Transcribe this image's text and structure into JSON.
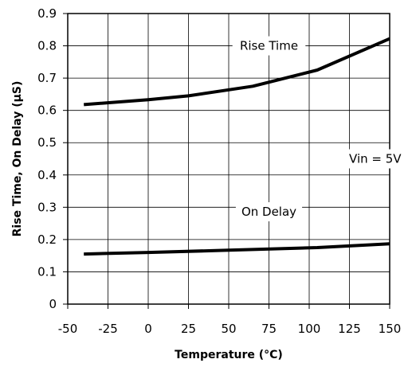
{
  "chart_data": {
    "type": "line",
    "xlabel": "Temperature (°C)",
    "ylabel": "Rise Time,  On Delay  (µS)",
    "xlim": [
      -50,
      150
    ],
    "ylim": [
      0,
      0.9
    ],
    "xticks": [
      -50,
      -25,
      0,
      25,
      50,
      75,
      100,
      125,
      150
    ],
    "xtick_labels": [
      "-50",
      "-25",
      "0",
      "25",
      "50",
      "75",
      "100",
      "125",
      "150"
    ],
    "yticks": [
      0,
      0.1,
      0.2,
      0.3,
      0.4,
      0.5,
      0.6,
      0.7,
      0.8,
      0.9
    ],
    "ytick_labels": [
      "0",
      "0.1",
      "0.2",
      "0.3",
      "0.4",
      "0.5",
      "0.6",
      "0.7",
      "0.8",
      "0.9"
    ],
    "grid": true,
    "series": [
      {
        "name": "Rise Time",
        "points": [
          [
            -40,
            0.618
          ],
          [
            0,
            0.633
          ],
          [
            25,
            0.645
          ],
          [
            65,
            0.675
          ],
          [
            105,
            0.725
          ],
          [
            150,
            0.822
          ]
        ]
      },
      {
        "name": "On Delay",
        "points": [
          [
            -40,
            0.155
          ],
          [
            0,
            0.16
          ],
          [
            50,
            0.167
          ],
          [
            105,
            0.175
          ],
          [
            150,
            0.187
          ]
        ]
      }
    ],
    "annotations": [
      {
        "text": "Rise Time",
        "x": 75,
        "y": 0.8
      },
      {
        "text": "On Delay",
        "x": 75,
        "y": 0.286
      },
      {
        "text": "Vin = 5V",
        "x": 141,
        "y": 0.45
      }
    ]
  }
}
